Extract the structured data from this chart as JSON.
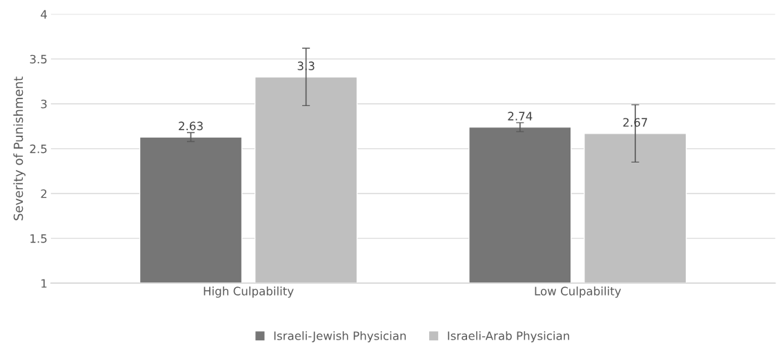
{
  "chart_data": {
    "type": "bar",
    "ylabel": "Severity of Punishment",
    "categories": [
      "High Culpability",
      "Low Culpability"
    ],
    "series": [
      {
        "name": "Israeli-Jewish Physician",
        "color": "#767676",
        "values": [
          2.63,
          2.74
        ],
        "errors": [
          0.05,
          0.05
        ]
      },
      {
        "name": "Israeli-Arab Physician",
        "color": "#bfbfbf",
        "values": [
          3.3,
          2.67
        ],
        "errors": [
          0.32,
          0.32
        ]
      }
    ],
    "ylim": [
      1,
      4
    ],
    "yticks": [
      1,
      1.5,
      2,
      2.5,
      3,
      3.5,
      4
    ],
    "grid": "y",
    "legend": "bottom",
    "data_labels": true
  }
}
